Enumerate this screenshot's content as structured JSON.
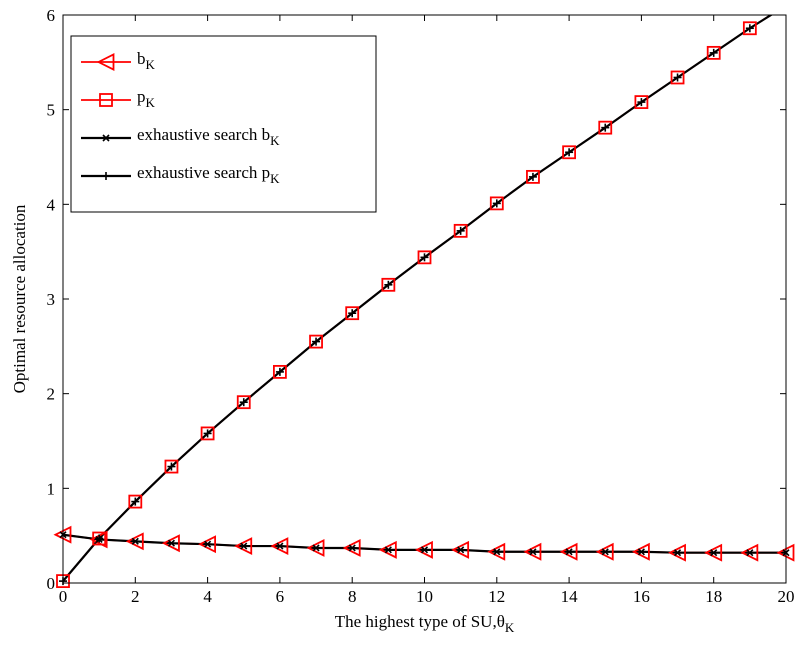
{
  "chart_data": {
    "type": "line",
    "xlabel": "The highest type of SU,θ",
    "xlabel_sub": "K",
    "ylabel": "Optimal resource allocation",
    "xlim": [
      0,
      20
    ],
    "ylim": [
      0,
      6
    ],
    "xticks": [
      "0",
      "2",
      "4",
      "6",
      "8",
      "10",
      "12",
      "14",
      "16",
      "18",
      "20"
    ],
    "yticks": [
      "0",
      "1",
      "2",
      "3",
      "4",
      "5",
      "6"
    ],
    "grid": false,
    "legend_position": "top-left",
    "x": [
      0,
      1,
      2,
      3,
      4,
      5,
      6,
      7,
      8,
      9,
      10,
      11,
      12,
      13,
      14,
      15,
      16,
      17,
      18,
      19,
      20
    ],
    "series": [
      {
        "name": "b",
        "name_sub": "K",
        "color": "#ff0000",
        "marker": "triangle-left",
        "values": [
          0.51,
          0.46,
          0.44,
          0.42,
          0.41,
          0.39,
          0.39,
          0.37,
          0.37,
          0.35,
          0.35,
          0.35,
          0.33,
          0.33,
          0.33,
          0.33,
          0.33,
          0.32,
          0.32,
          0.32,
          0.32
        ]
      },
      {
        "name": "p",
        "name_sub": "K",
        "color": "#ff0000",
        "marker": "square",
        "values": [
          0.02,
          0.47,
          0.86,
          1.23,
          1.58,
          1.91,
          2.23,
          2.55,
          2.85,
          3.15,
          3.44,
          3.72,
          4.01,
          4.29,
          4.55,
          4.81,
          5.08,
          5.34,
          5.6,
          5.86,
          6.1
        ]
      },
      {
        "name": "exhaustive search b",
        "name_sub": "K",
        "color": "#000000",
        "marker": "x",
        "values": [
          0.51,
          0.46,
          0.44,
          0.42,
          0.41,
          0.39,
          0.39,
          0.37,
          0.37,
          0.35,
          0.35,
          0.35,
          0.33,
          0.33,
          0.33,
          0.33,
          0.33,
          0.32,
          0.32,
          0.32,
          0.32
        ]
      },
      {
        "name": "exhaustive search p",
        "name_sub": "K",
        "color": "#000000",
        "marker": "plus",
        "values": [
          0.02,
          0.47,
          0.86,
          1.23,
          1.58,
          1.91,
          2.23,
          2.55,
          2.85,
          3.15,
          3.44,
          3.72,
          4.01,
          4.29,
          4.55,
          4.81,
          5.08,
          5.34,
          5.6,
          5.86,
          6.1
        ]
      }
    ]
  }
}
